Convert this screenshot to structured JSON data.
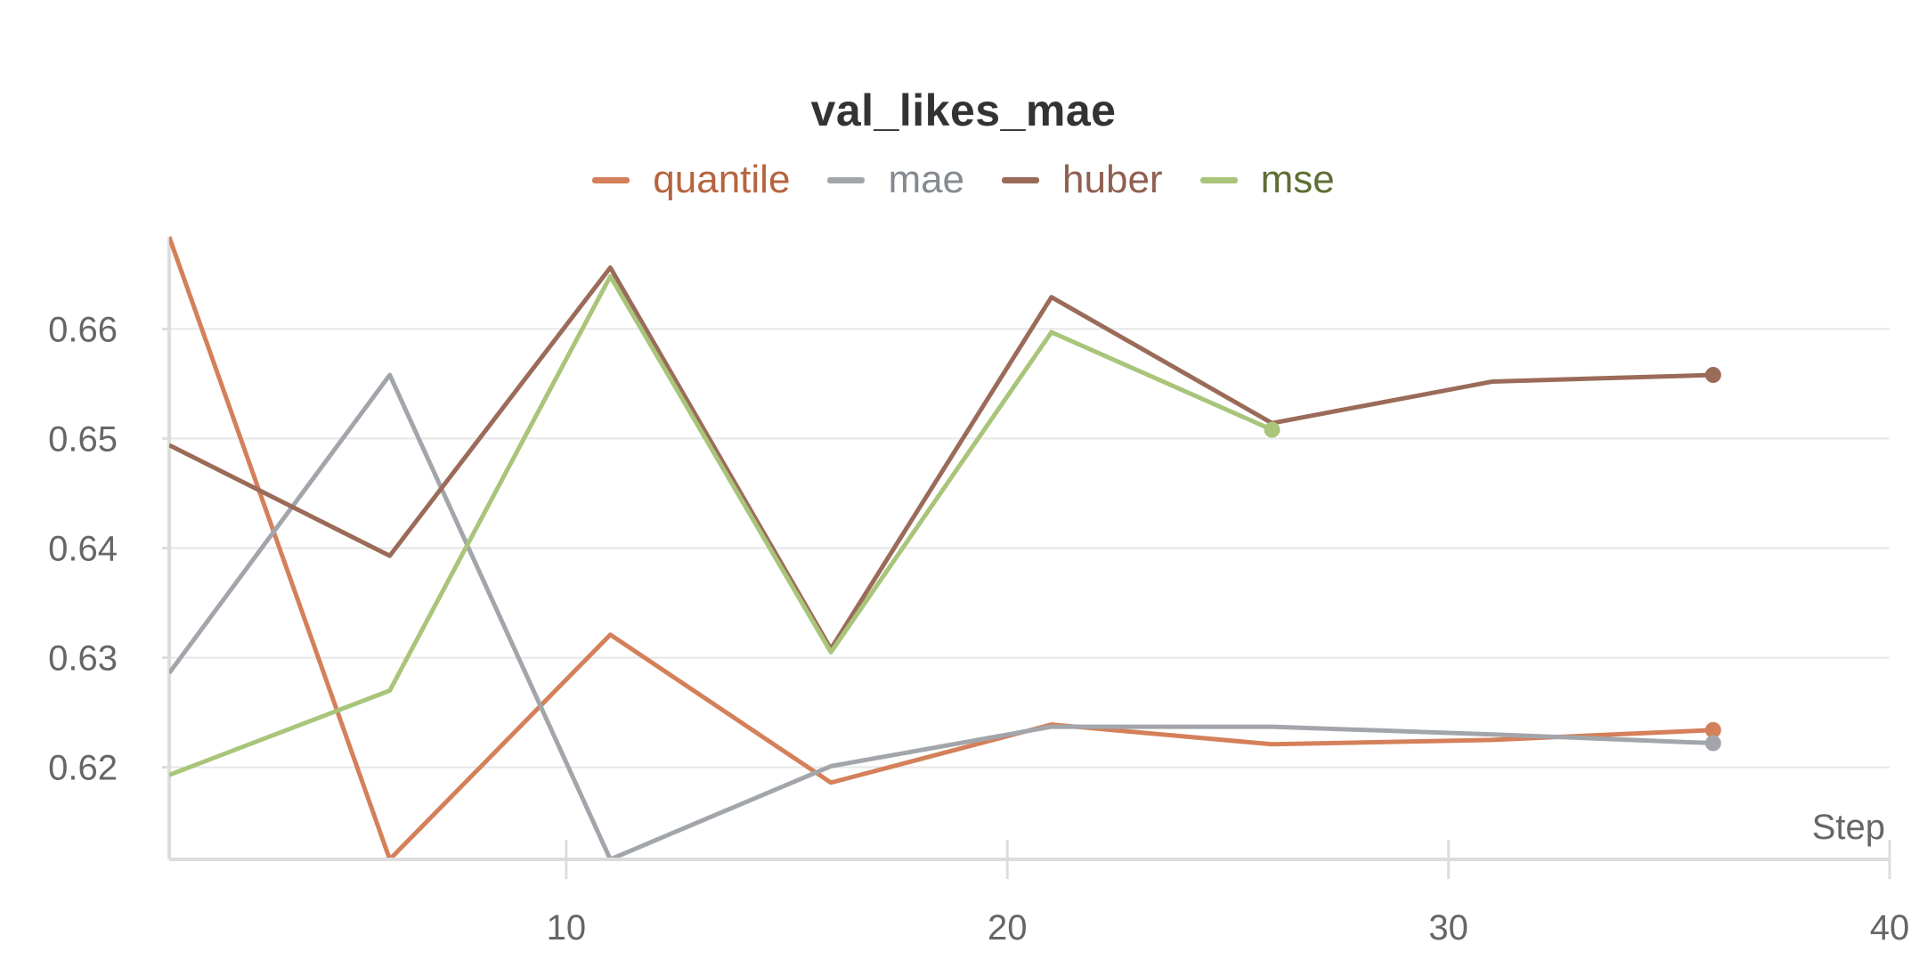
{
  "chart_data": {
    "type": "line",
    "title": "val_likes_mae",
    "xlabel": "Step",
    "ylabel": "",
    "xlim": [
      1,
      40
    ],
    "ylim": [
      0.6116,
      0.6684
    ],
    "x_ticks": [
      10,
      20,
      30,
      40
    ],
    "y_ticks": [
      0.62,
      0.63,
      0.64,
      0.65,
      0.66
    ],
    "x_tick_labels": [
      "10",
      "20",
      "30",
      "40"
    ],
    "y_tick_labels": [
      "0.62",
      "0.63",
      "0.64",
      "0.65",
      "0.66"
    ],
    "grid": "horizontal",
    "legend_position": "top-center",
    "series": [
      {
        "name": "quantile",
        "color": "#d4805a",
        "x": [
          1,
          6,
          11,
          16,
          21,
          26,
          31,
          36
        ],
        "values": [
          0.6684,
          0.6116,
          0.6321,
          0.6186,
          0.6239,
          0.6221,
          0.6225,
          0.6234
        ]
      },
      {
        "name": "mae",
        "color": "#a2a6ab",
        "x": [
          1,
          6,
          11,
          16,
          21,
          26,
          31,
          36
        ],
        "values": [
          0.6286,
          0.6558,
          0.6116,
          0.6201,
          0.6237,
          0.6237,
          0.623,
          0.6222
        ]
      },
      {
        "name": "huber",
        "color": "#9b6b5a",
        "x": [
          1,
          6,
          11,
          16,
          21,
          26,
          31,
          36
        ],
        "values": [
          0.6494,
          0.6393,
          0.6656,
          0.6308,
          0.6629,
          0.6514,
          0.6552,
          0.6558
        ]
      },
      {
        "name": "mse",
        "color": "#a8c57a",
        "x": [
          1,
          6,
          11,
          16,
          21,
          26
        ],
        "values": [
          0.6193,
          0.627,
          0.6648,
          0.6305,
          0.6597,
          0.6508
        ]
      }
    ]
  },
  "colors": {
    "grid": "#e6e6e6",
    "axis": "#dddddd",
    "legend_text": [
      "#b5643e",
      "#858a90",
      "#8f5f50",
      "#5e6e34"
    ]
  }
}
